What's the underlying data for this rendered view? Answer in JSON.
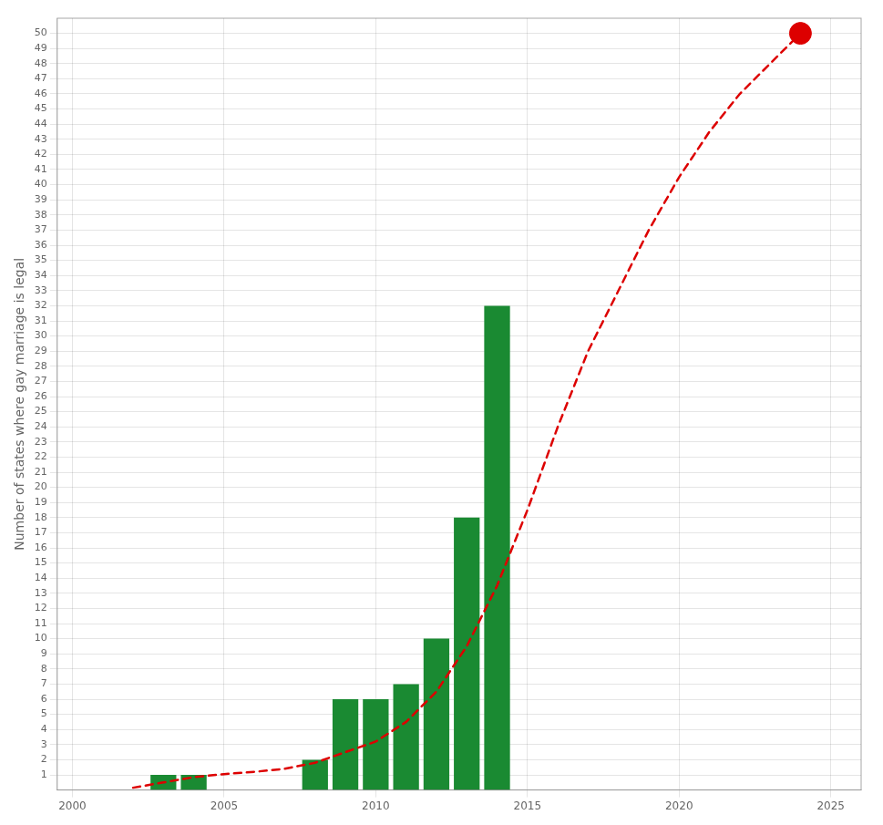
{
  "chart_data": {
    "type": "bar",
    "ylabel": "Number of states where gay marriage is legal",
    "series": [
      {
        "type": "bar",
        "color": "#1a8a32",
        "x": [
          2003,
          2004,
          2008,
          2009,
          2010,
          2011,
          2012,
          2013,
          2014
        ],
        "values": [
          1,
          1,
          2,
          6,
          6,
          7,
          10,
          18,
          32
        ]
      },
      {
        "type": "line",
        "color": "#dd0000",
        "line_style": "dashed",
        "x": [
          2002,
          2003,
          2004,
          2005,
          2006,
          2007,
          2008,
          2009,
          2010,
          2011,
          2012,
          2013,
          2014,
          2015,
          2016,
          2017,
          2018,
          2019,
          2020,
          2021,
          2022,
          2023,
          2024
        ],
        "values": [
          0.15,
          0.5,
          0.85,
          1.05,
          1.2,
          1.4,
          1.8,
          2.5,
          3.2,
          4.5,
          6.5,
          9.5,
          13.5,
          18.5,
          24.0,
          29.0,
          33.0,
          37.0,
          40.5,
          43.5,
          46.0,
          48.0,
          50.0
        ]
      },
      {
        "type": "scatter",
        "color": "#dd0000",
        "marker": "circle",
        "x": [
          2024
        ],
        "values": [
          50
        ]
      }
    ],
    "xlim": [
      1999.5,
      2026
    ],
    "xticks": [
      2000,
      2005,
      2010,
      2015,
      2020,
      2025
    ],
    "ylim": [
      0,
      51
    ],
    "yticks": [
      1,
      2,
      3,
      4,
      5,
      6,
      7,
      8,
      9,
      10,
      11,
      12,
      13,
      14,
      15,
      16,
      17,
      18,
      19,
      20,
      21,
      22,
      23,
      24,
      25,
      26,
      27,
      28,
      29,
      30,
      31,
      32,
      33,
      34,
      35,
      36,
      37,
      38,
      39,
      40,
      41,
      42,
      43,
      44,
      45,
      46,
      47,
      48,
      49,
      50
    ],
    "grid": true
  }
}
